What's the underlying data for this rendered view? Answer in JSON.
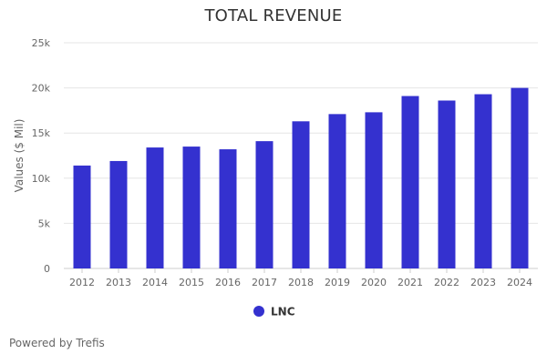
{
  "page": {
    "footer": "Powered by Trefis"
  },
  "colors": {
    "bar": "#3431cf",
    "grid": "#e6e6e6",
    "axis_text": "#666666",
    "legend_text": "#333333"
  },
  "chart_data": {
    "type": "bar",
    "title": "TOTAL REVENUE",
    "xlabel": "",
    "ylabel": "Values ($ Mil)",
    "ylim": [
      0,
      25000
    ],
    "yticks": [
      0,
      5000,
      10000,
      15000,
      20000,
      25000
    ],
    "ytick_labels": [
      "0",
      "5k",
      "10k",
      "15k",
      "20k",
      "25k"
    ],
    "grid": true,
    "legend_position": "bottom-center",
    "categories": [
      "2012",
      "2013",
      "2014",
      "2015",
      "2016",
      "2017",
      "2018",
      "2019",
      "2020",
      "2021",
      "2022",
      "2023",
      "2024"
    ],
    "series": [
      {
        "name": "LNC",
        "color": "#3431cf",
        "values": [
          11400,
          11900,
          13400,
          13500,
          13200,
          14100,
          16300,
          17100,
          17300,
          19100,
          18600,
          19300,
          20000
        ]
      }
    ]
  }
}
